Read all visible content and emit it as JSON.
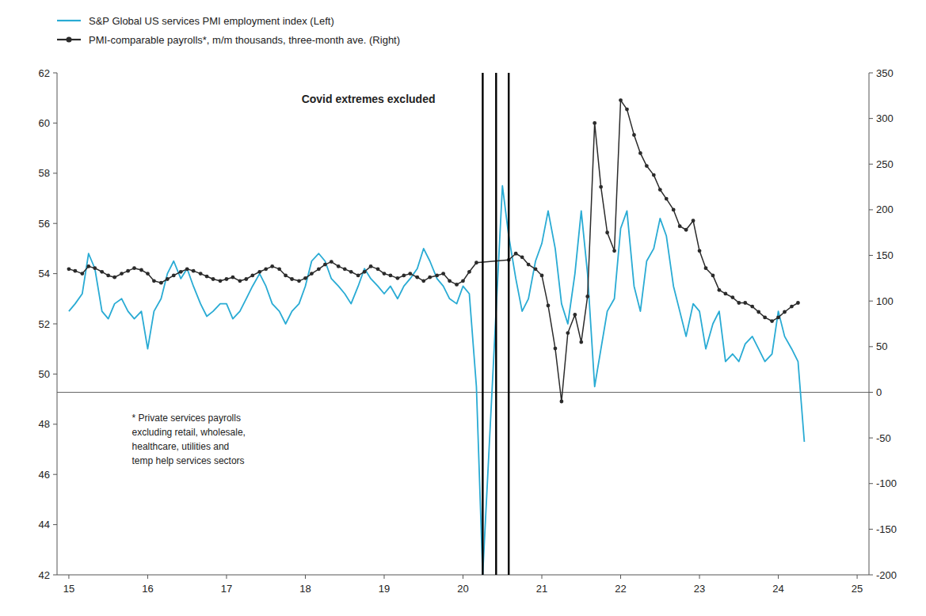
{
  "chart_data": {
    "type": "line",
    "legend": "top",
    "grid": false,
    "xlim": [
      14.85,
      25.15
    ],
    "xticks": [
      15,
      16,
      17,
      18,
      19,
      20,
      21,
      22,
      23,
      24,
      25
    ],
    "ylim": [
      42,
      62
    ],
    "yticks": [
      42,
      44,
      46,
      48,
      50,
      52,
      54,
      56,
      58,
      60,
      62
    ],
    "y2lim": [
      -200,
      350
    ],
    "y2ticks": [
      -200,
      -150,
      -100,
      -50,
      0,
      50,
      100,
      150,
      200,
      250,
      300,
      350
    ],
    "vlines": [
      20.25,
      20.42,
      20.58
    ],
    "y2_reference_lines": [
      0
    ],
    "annotations": [
      "Covid extremes excluded",
      "* Private services payrolls\nexcluding retail, wholesale,\nhealthcare, utilities and\ntemp help services sectors"
    ],
    "series": [
      {
        "name": "S&P Global US services PMI employment index (Left)",
        "color": "#29ABD4",
        "axis": "y",
        "type": "line",
        "x": [
          15.0,
          15.08,
          15.17,
          15.25,
          15.33,
          15.42,
          15.5,
          15.58,
          15.67,
          15.75,
          15.83,
          15.92,
          16.0,
          16.08,
          16.17,
          16.25,
          16.33,
          16.42,
          16.5,
          16.58,
          16.67,
          16.75,
          16.83,
          16.92,
          17.0,
          17.08,
          17.17,
          17.25,
          17.33,
          17.42,
          17.5,
          17.58,
          17.67,
          17.75,
          17.83,
          17.92,
          18.0,
          18.08,
          18.17,
          18.25,
          18.33,
          18.42,
          18.5,
          18.58,
          18.67,
          18.75,
          18.83,
          18.92,
          19.0,
          19.08,
          19.17,
          19.25,
          19.33,
          19.42,
          19.5,
          19.58,
          19.67,
          19.75,
          19.83,
          19.92,
          20.0,
          20.08,
          20.17,
          20.25,
          20.5,
          20.58,
          20.67,
          20.75,
          20.83,
          20.92,
          21.0,
          21.08,
          21.17,
          21.25,
          21.33,
          21.42,
          21.5,
          21.58,
          21.67,
          21.75,
          21.83,
          21.92,
          22.0,
          22.08,
          22.17,
          22.25,
          22.33,
          22.42,
          22.5,
          22.58,
          22.67,
          22.75,
          22.83,
          22.92,
          23.0,
          23.08,
          23.17,
          23.25,
          23.33,
          23.42,
          23.5,
          23.58,
          23.67,
          23.75,
          23.83,
          23.92,
          24.0,
          24.08,
          24.17,
          24.25,
          24.33
        ],
        "values": [
          52.5,
          52.8,
          53.2,
          54.8,
          54.2,
          52.5,
          52.2,
          52.8,
          53.0,
          52.5,
          52.2,
          52.5,
          51.0,
          52.5,
          53.0,
          54.0,
          54.5,
          53.8,
          54.2,
          53.5,
          52.8,
          52.3,
          52.5,
          52.8,
          52.8,
          52.2,
          52.5,
          53.0,
          53.5,
          54.0,
          53.5,
          52.8,
          52.5,
          52.0,
          52.5,
          52.8,
          53.5,
          54.5,
          54.8,
          54.5,
          53.8,
          53.5,
          53.2,
          52.8,
          53.5,
          54.2,
          53.8,
          53.5,
          53.2,
          53.5,
          53.0,
          53.5,
          53.8,
          54.2,
          55.0,
          54.5,
          53.8,
          53.5,
          53.0,
          52.8,
          53.5,
          53.2,
          49.5,
          42.0,
          57.5,
          55.5,
          53.8,
          52.5,
          53.0,
          54.5,
          55.2,
          56.5,
          55.0,
          52.8,
          52.0,
          54.0,
          56.5,
          54.0,
          49.5,
          51.0,
          52.5,
          53.0,
          55.8,
          56.5,
          53.5,
          52.5,
          54.5,
          55.0,
          56.2,
          55.5,
          53.5,
          52.5,
          51.5,
          52.8,
          52.5,
          51.0,
          52.0,
          52.5,
          50.5,
          50.8,
          50.5,
          51.2,
          51.5,
          51.0,
          50.5,
          50.8,
          52.5,
          51.5,
          51.0,
          50.5,
          47.3
        ]
      },
      {
        "name": "PMI-comparable payrolls*, m/m thousands, three-month ave. (Right)",
        "color": "#2b2b2b",
        "axis": "y2",
        "type": "line",
        "marker": "circle",
        "x": [
          15.0,
          15.08,
          15.17,
          15.25,
          15.33,
          15.42,
          15.5,
          15.58,
          15.67,
          15.75,
          15.83,
          15.92,
          16.0,
          16.08,
          16.17,
          16.25,
          16.33,
          16.42,
          16.5,
          16.58,
          16.67,
          16.75,
          16.83,
          16.92,
          17.0,
          17.08,
          17.17,
          17.25,
          17.33,
          17.42,
          17.5,
          17.58,
          17.67,
          17.75,
          17.83,
          17.92,
          18.0,
          18.08,
          18.17,
          18.25,
          18.33,
          18.42,
          18.5,
          18.58,
          18.67,
          18.75,
          18.83,
          18.92,
          19.0,
          19.08,
          19.17,
          19.25,
          19.33,
          19.42,
          19.5,
          19.58,
          19.67,
          19.75,
          19.83,
          19.92,
          20.0,
          20.08,
          20.17,
          20.58,
          20.67,
          20.75,
          20.83,
          20.92,
          21.0,
          21.08,
          21.17,
          21.25,
          21.33,
          21.42,
          21.5,
          21.58,
          21.67,
          21.75,
          21.83,
          21.92,
          22.0,
          22.08,
          22.17,
          22.25,
          22.33,
          22.42,
          22.5,
          22.58,
          22.67,
          22.75,
          22.83,
          22.92,
          23.0,
          23.08,
          23.17,
          23.25,
          23.33,
          23.42,
          23.5,
          23.58,
          23.67,
          23.75,
          23.83,
          23.92,
          24.0,
          24.08,
          24.17,
          24.25
        ],
        "values": [
          135,
          133,
          130,
          138,
          136,
          132,
          128,
          126,
          130,
          133,
          136,
          134,
          130,
          122,
          120,
          124,
          128,
          132,
          135,
          133,
          130,
          127,
          124,
          122,
          124,
          126,
          122,
          124,
          128,
          132,
          135,
          138,
          135,
          128,
          124,
          122,
          125,
          130,
          135,
          140,
          143,
          138,
          135,
          132,
          128,
          132,
          138,
          135,
          130,
          128,
          125,
          128,
          130,
          126,
          122,
          126,
          128,
          130,
          122,
          118,
          122,
          132,
          142,
          145,
          152,
          148,
          140,
          135,
          128,
          95,
          48,
          -10,
          65,
          85,
          55,
          105,
          295,
          225,
          175,
          155,
          320,
          310,
          282,
          262,
          248,
          238,
          222,
          212,
          200,
          182,
          178,
          188,
          155,
          136,
          128,
          112,
          108,
          104,
          98,
          98,
          94,
          88,
          82,
          78,
          82,
          88,
          94,
          98
        ]
      }
    ]
  }
}
